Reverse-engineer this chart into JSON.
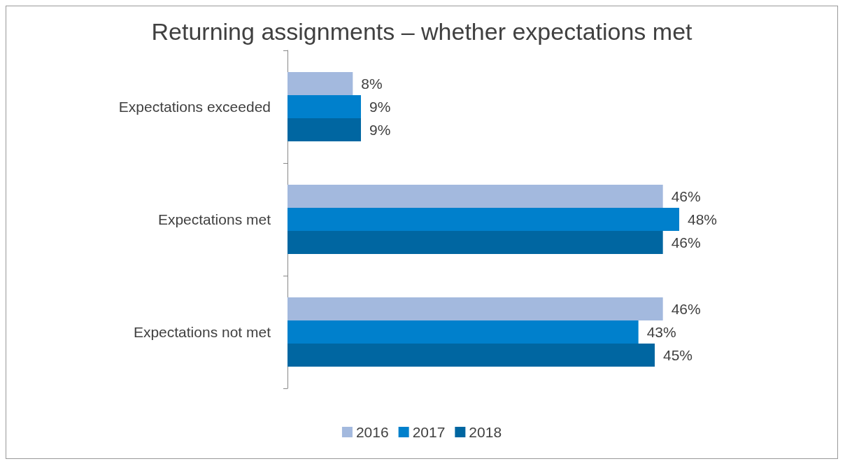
{
  "chart_data": {
    "type": "bar",
    "orientation": "horizontal",
    "title": "Returning assignments – whether expectations met",
    "categories": [
      "Expectations exceeded",
      "Expectations met",
      "Expectations not met"
    ],
    "series": [
      {
        "name": "2016",
        "color": "#a3b9de",
        "values": [
          8,
          46,
          46
        ],
        "value_labels": [
          "8%",
          "46%",
          "46%"
        ]
      },
      {
        "name": "2017",
        "color": "#0080cc",
        "values": [
          9,
          48,
          43
        ],
        "value_labels": [
          "9%",
          "48%",
          "43%"
        ]
      },
      {
        "name": "2018",
        "color": "#0066a1",
        "values": [
          9,
          46,
          45
        ],
        "value_labels": [
          "9%",
          "46%",
          "45%"
        ]
      }
    ],
    "legend": "bottom"
  }
}
